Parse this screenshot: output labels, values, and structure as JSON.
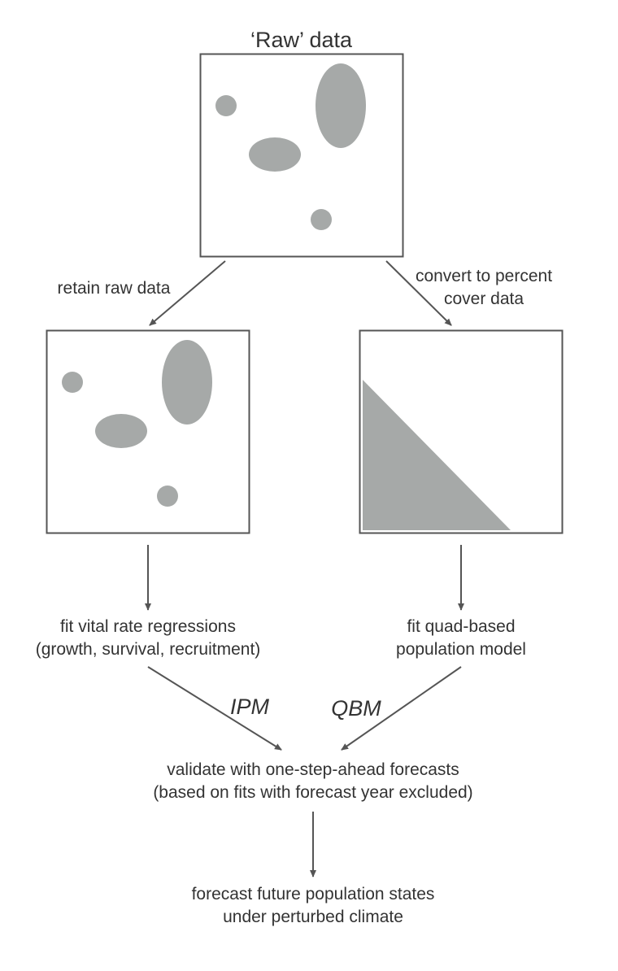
{
  "title": "‘Raw’ data",
  "left_branch": {
    "label": "retain raw data",
    "step_line1": "fit vital rate regressions",
    "step_line2": "(growth, survival, recruitment)",
    "model": "IPM"
  },
  "right_branch": {
    "label_line1": "convert to percent",
    "label_line2": "cover data",
    "step_line1": "fit quad-based",
    "step_line2": "population model",
    "model": "QBM"
  },
  "validate": {
    "line1": "validate with one-step-ahead forecasts",
    "line2": "(based on fits with forecast year excluded)"
  },
  "forecast": {
    "line1": "forecast future population states",
    "line2": "under perturbed climate"
  },
  "colors": {
    "shape_fill": "#a6a9a8",
    "box_stroke": "#555555",
    "arrow": "#555555",
    "text": "#333333"
  }
}
